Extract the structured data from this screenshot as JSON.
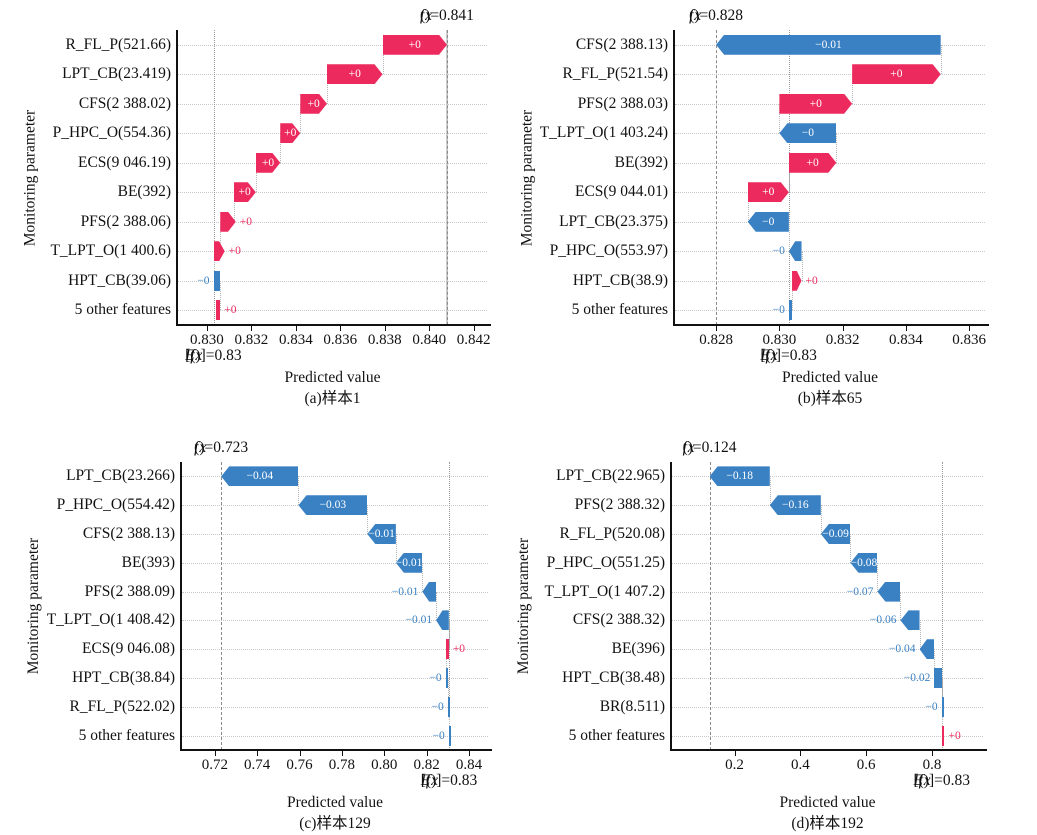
{
  "figure": {
    "ylabel": "Monitoring parameter",
    "xlabel": "Predicted value",
    "colors": {
      "positive": "#ed2a5e",
      "negative": "#3a81c3",
      "bar_text": "#ffffff",
      "axis": "#111111",
      "gridline": "#c9c9c9",
      "guide_line": "#8a8a8a"
    }
  },
  "chart_data": [
    {
      "type": "bar",
      "subtype": "shap-waterfall",
      "id": "a",
      "caption": "(a)样本1",
      "xlabel": "Predicted value",
      "ylabel": "Monitoring parameter",
      "fx": {
        "label": "f(x)=0.841",
        "value": 0.8408
      },
      "base": {
        "label": "E[f(x)]=0.83",
        "value": 0.8303
      },
      "x_range": [
        0.8287,
        0.8426
      ],
      "x_tick_values": [
        0.83,
        0.832,
        0.834,
        0.836,
        0.838,
        0.84,
        0.842
      ],
      "x_tick_labels": [
        "0.830",
        "0.832",
        "0.834",
        "0.836",
        "0.838",
        "0.840",
        "0.842"
      ],
      "rows": [
        {
          "feature": "R_FL_P(521.66)",
          "value_label": "+0",
          "sign": "pos",
          "span": [
            0.8379,
            0.8408
          ],
          "label_pos": "in"
        },
        {
          "feature": "LPT_CB(23.419)",
          "value_label": "+0",
          "sign": "pos",
          "span": [
            0.8354,
            0.8379
          ],
          "label_pos": "in"
        },
        {
          "feature": "CFS(2 388.02)",
          "value_label": "+0",
          "sign": "pos",
          "span": [
            0.8342,
            0.8354
          ],
          "label_pos": "in"
        },
        {
          "feature": "P_HPC_O(554.36)",
          "value_label": "+0",
          "sign": "pos",
          "span": [
            0.8333,
            0.8342
          ],
          "label_pos": "in"
        },
        {
          "feature": "ECS(9 046.19)",
          "value_label": "+0",
          "sign": "pos",
          "span": [
            0.8322,
            0.8333
          ],
          "label_pos": "in"
        },
        {
          "feature": "BE(392)",
          "value_label": "+0",
          "sign": "pos",
          "span": [
            0.8312,
            0.8322
          ],
          "label_pos": "in"
        },
        {
          "feature": "PFS(2 388.06)",
          "value_label": "+0",
          "sign": "pos",
          "span": [
            0.8306,
            0.8313
          ],
          "label_pos": "right"
        },
        {
          "feature": "T_LPT_O(1 400.6)",
          "value_label": "+0",
          "sign": "pos",
          "span": [
            0.8303,
            0.8308
          ],
          "label_pos": "right"
        },
        {
          "feature": "HPT_CB(39.06)",
          "value_label": "−0",
          "sign": "neg",
          "span": [
            0.8303,
            0.8306
          ],
          "label_pos": "left"
        },
        {
          "feature": "5 other features",
          "value_label": "+0",
          "sign": "pos",
          "span": [
            0.8304,
            0.8306
          ],
          "label_pos": "right"
        }
      ]
    },
    {
      "type": "bar",
      "subtype": "shap-waterfall",
      "id": "b",
      "caption": "(b)样本65",
      "xlabel": "Predicted value",
      "ylabel": "Monitoring parameter",
      "fx": {
        "label": "f(x)=0.828",
        "value": 0.828
      },
      "base": {
        "label": "E[f(x)]=0.83",
        "value": 0.8303
      },
      "x_range": [
        0.8267,
        0.8365
      ],
      "x_tick_values": [
        0.828,
        0.83,
        0.832,
        0.834,
        0.836
      ],
      "x_tick_labels": [
        "0.828",
        "0.830",
        "0.832",
        "0.834",
        "0.836"
      ],
      "rows": [
        {
          "feature": "CFS(2 388.13)",
          "value_label": "−0.01",
          "sign": "neg",
          "span": [
            0.828,
            0.8351
          ],
          "label_pos": "in"
        },
        {
          "feature": "R_FL_P(521.54)",
          "value_label": "+0",
          "sign": "pos",
          "span": [
            0.8323,
            0.8351
          ],
          "label_pos": "in"
        },
        {
          "feature": "PFS(2 388.03)",
          "value_label": "+0",
          "sign": "pos",
          "span": [
            0.83,
            0.8323
          ],
          "label_pos": "in"
        },
        {
          "feature": "T_LPT_O(1 403.24)",
          "value_label": "−0",
          "sign": "neg",
          "span": [
            0.83,
            0.8318
          ],
          "label_pos": "in"
        },
        {
          "feature": "BE(392)",
          "value_label": "+0",
          "sign": "pos",
          "span": [
            0.8303,
            0.8318
          ],
          "label_pos": "in"
        },
        {
          "feature": "ECS(9 044.01)",
          "value_label": "+0",
          "sign": "pos",
          "span": [
            0.829,
            0.8303
          ],
          "label_pos": "in"
        },
        {
          "feature": "LPT_CB(23.375)",
          "value_label": "−0",
          "sign": "neg",
          "span": [
            0.829,
            0.8303
          ],
          "label_pos": "in"
        },
        {
          "feature": "P_HPC_O(553.97)",
          "value_label": "−0",
          "sign": "neg",
          "span": [
            0.8303,
            0.8307
          ],
          "label_pos": "left"
        },
        {
          "feature": "HPT_CB(38.9)",
          "value_label": "+0",
          "sign": "pos",
          "span": [
            0.8304,
            0.8307
          ],
          "label_pos": "right"
        },
        {
          "feature": "5 other features",
          "value_label": "−0",
          "sign": "neg",
          "span": [
            0.8303,
            0.8304
          ],
          "label_pos": "left"
        }
      ]
    },
    {
      "type": "bar",
      "subtype": "shap-waterfall",
      "id": "c",
      "caption": "(c)样本129",
      "xlabel": "Predicted value",
      "ylabel": "Monitoring parameter",
      "fx": {
        "label": "f(x)=0.723",
        "value": 0.723
      },
      "base": {
        "label": "E[f(x)]=0.83",
        "value": 0.8307
      },
      "x_range": [
        0.7045,
        0.849
      ],
      "x_tick_values": [
        0.72,
        0.74,
        0.76,
        0.78,
        0.8,
        0.82,
        0.84
      ],
      "x_tick_labels": [
        "0.72",
        "0.74",
        "0.76",
        "0.78",
        "0.80",
        "0.82",
        "0.84"
      ],
      "rows": [
        {
          "feature": "LPT_CB(23.266)",
          "value_label": "−0.04",
          "sign": "neg",
          "span": [
            0.723,
            0.7595
          ],
          "label_pos": "in"
        },
        {
          "feature": "P_HPC_O(554.42)",
          "value_label": "−0.03",
          "sign": "neg",
          "span": [
            0.7595,
            0.792
          ],
          "label_pos": "in"
        },
        {
          "feature": "CFS(2 388.13)",
          "value_label": "−0.01",
          "sign": "neg",
          "span": [
            0.792,
            0.8055
          ],
          "label_pos": "in"
        },
        {
          "feature": "BE(393)",
          "value_label": "−0.01",
          "sign": "neg",
          "span": [
            0.8055,
            0.818
          ],
          "label_pos": "in"
        },
        {
          "feature": "PFS(2 388.09)",
          "value_label": "−0.01",
          "sign": "neg",
          "span": [
            0.818,
            0.8245
          ],
          "label_pos": "left"
        },
        {
          "feature": "T_LPT_O(1 408.42)",
          "value_label": "−0.01",
          "sign": "neg",
          "span": [
            0.8245,
            0.8305
          ],
          "label_pos": "left"
        },
        {
          "feature": "ECS(9 046.08)",
          "value_label": "+0",
          "sign": "pos",
          "span": [
            0.829,
            0.8305
          ],
          "label_pos": "right"
        },
        {
          "feature": "HPT_CB(38.84)",
          "value_label": "−0",
          "sign": "neg",
          "span": [
            0.829,
            0.83
          ],
          "label_pos": "left"
        },
        {
          "feature": "R_FL_P(522.02)",
          "value_label": "−0",
          "sign": "neg",
          "span": [
            0.83,
            0.8305
          ],
          "label_pos": "left"
        },
        {
          "feature": "5 other features",
          "value_label": "−0",
          "sign": "neg",
          "span": [
            0.8305,
            0.8307
          ],
          "label_pos": "left"
        }
      ]
    },
    {
      "type": "bar",
      "subtype": "shap-waterfall",
      "id": "d",
      "caption": "(d)样本192",
      "xlabel": "Predicted value",
      "ylabel": "Monitoring parameter",
      "fx": {
        "label": "f(x)=0.124",
        "value": 0.1242
      },
      "base": {
        "label": "E[f(x)]=0.83",
        "value": 0.8303
      },
      "x_range": [
        0.01,
        0.955
      ],
      "x_tick_values": [
        0.2,
        0.4,
        0.6,
        0.8
      ],
      "x_tick_labels": [
        "0.2",
        "0.4",
        "0.6",
        "0.8"
      ],
      "rows": [
        {
          "feature": "LPT_CB(22.965)",
          "value_label": "−0.18",
          "sign": "neg",
          "span": [
            0.1242,
            0.3072
          ],
          "label_pos": "in"
        },
        {
          "feature": "PFS(2 388.32)",
          "value_label": "−0.16",
          "sign": "neg",
          "span": [
            0.3072,
            0.4622
          ],
          "label_pos": "in"
        },
        {
          "feature": "R_FL_P(520.08)",
          "value_label": "−0.09",
          "sign": "neg",
          "span": [
            0.4622,
            0.5522
          ],
          "label_pos": "in"
        },
        {
          "feature": "P_HPC_O(551.25)",
          "value_label": "−0.08",
          "sign": "neg",
          "span": [
            0.5522,
            0.6342
          ],
          "label_pos": "in"
        },
        {
          "feature": "T_LPT_O(1 407.2)",
          "value_label": "−0.07",
          "sign": "neg",
          "span": [
            0.6342,
            0.7042
          ],
          "label_pos": "left"
        },
        {
          "feature": "CFS(2 388.32)",
          "value_label": "−0.06",
          "sign": "neg",
          "span": [
            0.7042,
            0.7622
          ],
          "label_pos": "left"
        },
        {
          "feature": "BE(396)",
          "value_label": "−0.04",
          "sign": "neg",
          "span": [
            0.7622,
            0.8072
          ],
          "label_pos": "left"
        },
        {
          "feature": "HPT_CB(38.48)",
          "value_label": "−0.02",
          "sign": "neg",
          "span": [
            0.8072,
            0.8292
          ],
          "label_pos": "left"
        },
        {
          "feature": "BR(8.511)",
          "value_label": "−0",
          "sign": "neg",
          "span": [
            0.8292,
            0.8307
          ],
          "label_pos": "left"
        },
        {
          "feature": "5 other features",
          "value_label": "+0",
          "sign": "pos",
          "span": [
            0.8303,
            0.8307
          ],
          "label_pos": "right"
        }
      ]
    }
  ]
}
